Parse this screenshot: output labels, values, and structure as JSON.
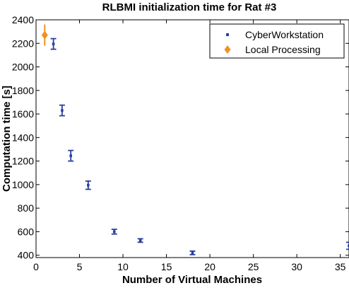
{
  "chart_data": {
    "type": "scatter",
    "title": "RLBMI initialization time for Rat #3",
    "xlabel": "Number of Virtual Machines",
    "ylabel": "Computation time [s]",
    "xlim": [
      0,
      36
    ],
    "ylim": [
      380,
      2400
    ],
    "xticks": [
      "0",
      "5",
      "10",
      "15",
      "20",
      "25",
      "30",
      "35"
    ],
    "yticks": [
      "400",
      "600",
      "800",
      "1000",
      "1200",
      "1400",
      "1600",
      "1800",
      "2000",
      "2200",
      "2400"
    ],
    "grid": false,
    "legend_position": "top-right",
    "series": [
      {
        "name": "CyberWorkstation",
        "color": "#2b3f9e",
        "marker": "point",
        "points": [
          {
            "x": 2,
            "y": 2195,
            "err": 45
          },
          {
            "x": 3,
            "y": 1630,
            "err": 45
          },
          {
            "x": 4,
            "y": 1245,
            "err": 45
          },
          {
            "x": 6,
            "y": 995,
            "err": 35
          },
          {
            "x": 9,
            "y": 600,
            "err": 20
          },
          {
            "x": 12,
            "y": 525,
            "err": 15
          },
          {
            "x": 18,
            "y": 420,
            "err": 15
          },
          {
            "x": 36,
            "y": 480,
            "err": 30
          }
        ]
      },
      {
        "name": "Local Processing",
        "color": "#f0921e",
        "marker": "diamond",
        "points": [
          {
            "x": 1,
            "y": 2270,
            "err": 90
          }
        ]
      }
    ]
  }
}
